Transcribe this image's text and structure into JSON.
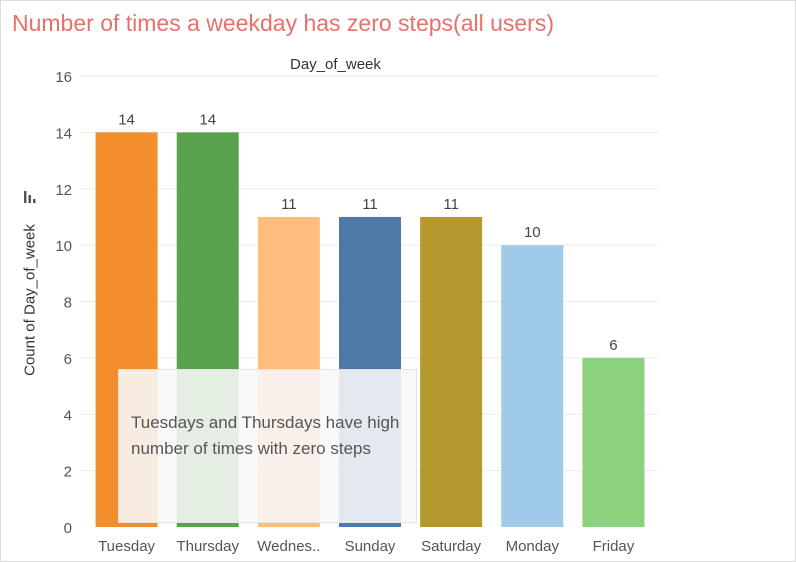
{
  "page": {
    "title": "Number of times a weekday has zero steps(all users)",
    "annotation": "Tuesdays and Thursdays have high number of times with zero steps"
  },
  "chart_data": {
    "type": "bar",
    "title": "Number of times a weekday has zero steps(all users)",
    "xlabel": "Day_of_week",
    "ylabel": "Count of Day_of_week",
    "categories": [
      "Tuesday",
      "Thursday",
      "Wednes..",
      "Sunday",
      "Saturday",
      "Monday",
      "Friday"
    ],
    "values": [
      14,
      14,
      11,
      11,
      11,
      10,
      6
    ],
    "colors": [
      "#f28e2b",
      "#59a14f",
      "#ffbe7d",
      "#4e79a7",
      "#b6992d",
      "#a0cbe8",
      "#8cd17d"
    ],
    "yticks": [
      0,
      2,
      4,
      6,
      8,
      10,
      12,
      14,
      16
    ],
    "ylim": [
      0,
      16
    ],
    "grid": true,
    "legend": "none"
  }
}
